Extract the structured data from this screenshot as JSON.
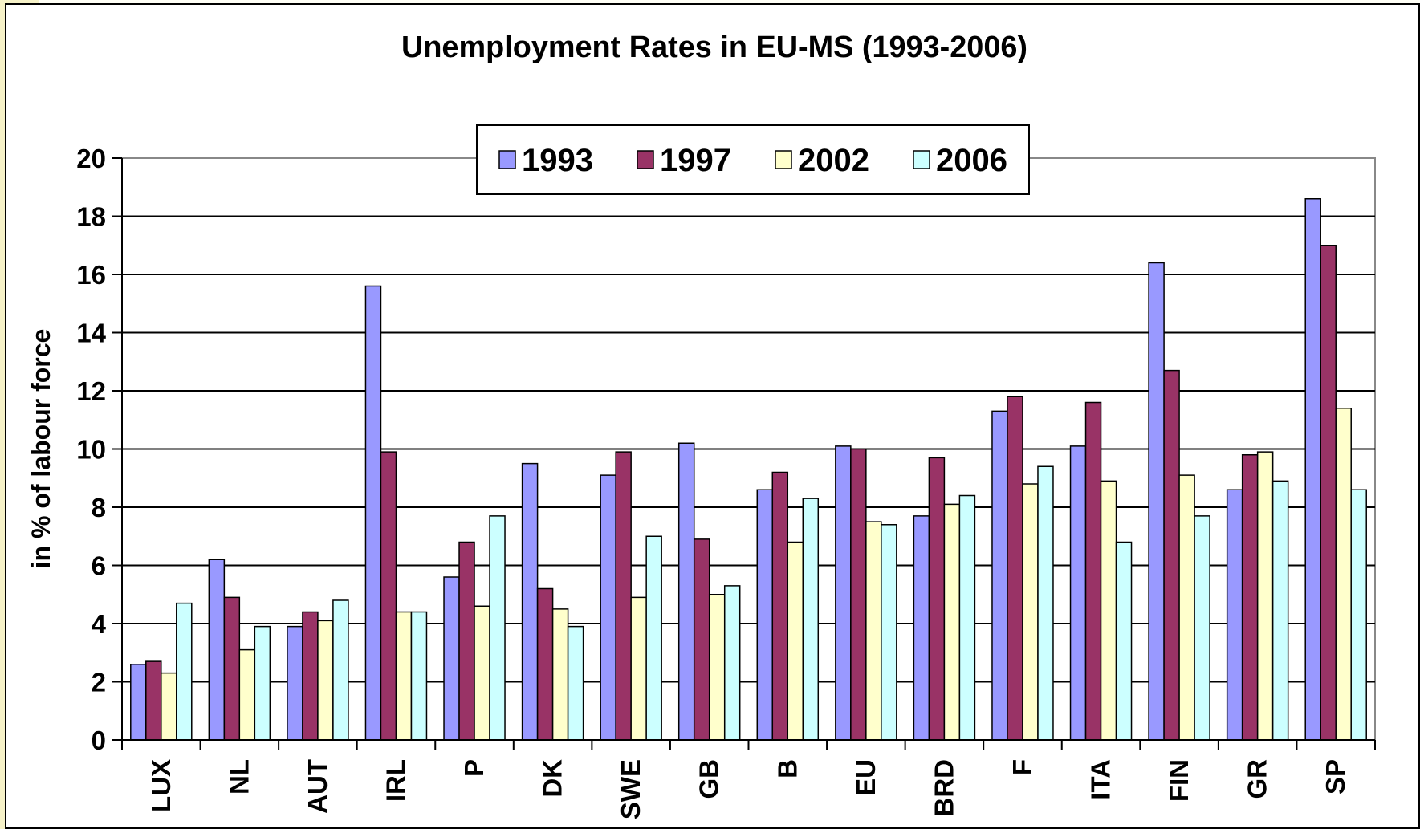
{
  "chart_data": {
    "type": "bar",
    "title": "Unemployment Rates in EU-MS (1993-2006)",
    "xlabel": "",
    "ylabel": "in % of labour force",
    "ylim": [
      0,
      20
    ],
    "yticks": [
      0,
      2,
      4,
      6,
      8,
      10,
      12,
      14,
      16,
      18,
      20
    ],
    "grid": true,
    "legend_position": "top-center",
    "categories": [
      "LUX",
      "NL",
      "AUT",
      "IRL",
      "P",
      "DK",
      "SWE",
      "GB",
      "B",
      "EU",
      "BRD",
      "F",
      "ITA",
      "FIN",
      "GR",
      "SP"
    ],
    "series": [
      {
        "name": "1993",
        "color": "#9999ff",
        "values": [
          2.6,
          6.2,
          3.9,
          15.6,
          5.6,
          9.5,
          9.1,
          10.2,
          8.6,
          10.1,
          7.7,
          11.3,
          10.1,
          16.4,
          8.6,
          18.6
        ]
      },
      {
        "name": "1997",
        "color": "#993366",
        "values": [
          2.7,
          4.9,
          4.4,
          9.9,
          6.8,
          5.2,
          9.9,
          6.9,
          9.2,
          10.0,
          9.7,
          11.8,
          11.6,
          12.7,
          9.8,
          17.0
        ]
      },
      {
        "name": "2002",
        "color": "#ffffcc",
        "values": [
          2.3,
          3.1,
          4.1,
          4.4,
          4.6,
          4.5,
          4.9,
          5.0,
          6.8,
          7.5,
          8.1,
          8.8,
          8.9,
          9.1,
          9.9,
          11.4
        ]
      },
      {
        "name": "2006",
        "color": "#ccffff",
        "values": [
          4.7,
          3.9,
          4.8,
          4.4,
          7.7,
          3.9,
          7.0,
          5.3,
          8.3,
          7.4,
          8.4,
          9.4,
          6.8,
          7.7,
          8.9,
          8.6
        ]
      }
    ]
  }
}
